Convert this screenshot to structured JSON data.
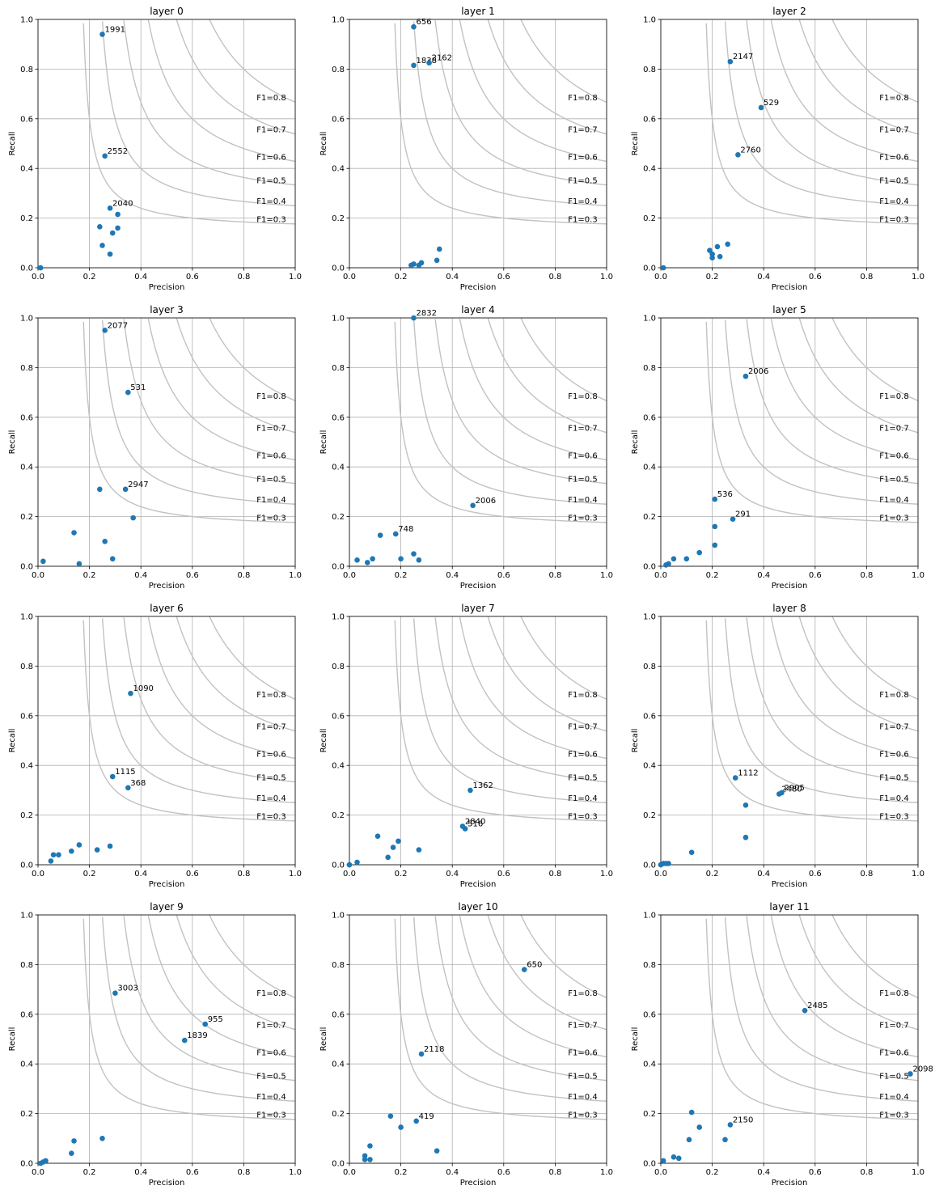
{
  "figure": {
    "xlabel": "Precision",
    "ylabel": "Recall",
    "xlim": [
      0,
      1
    ],
    "ylim": [
      0,
      1
    ],
    "ticks": [
      0,
      0.2,
      0.4,
      0.6,
      0.8,
      1.0
    ],
    "tick_labels": [
      "0.0",
      "0.2",
      "0.4",
      "0.6",
      "0.8",
      "1.0"
    ],
    "grid": true,
    "iso_f1": [
      0.3,
      0.4,
      0.5,
      0.6,
      0.7,
      0.8
    ],
    "iso_f1_labels": [
      "F1=0.3",
      "F1=0.4",
      "F1=0.5",
      "F1=0.6",
      "F1=0.7",
      "F1=0.8"
    ],
    "iso_curve_color": "#c2c2c2",
    "point_color": "#1f77b4",
    "grid_color": "#b0b0b0"
  },
  "chart_data": [
    {
      "type": "scatter",
      "title": "layer 0",
      "points": [
        {
          "x": 0.25,
          "y": 0.94,
          "label": "1991"
        },
        {
          "x": 0.26,
          "y": 0.45,
          "label": "2552"
        },
        {
          "x": 0.28,
          "y": 0.24,
          "label": "2040"
        },
        {
          "x": 0.31,
          "y": 0.215
        },
        {
          "x": 0.24,
          "y": 0.165
        },
        {
          "x": 0.31,
          "y": 0.16
        },
        {
          "x": 0.29,
          "y": 0.14
        },
        {
          "x": 0.25,
          "y": 0.09
        },
        {
          "x": 0.28,
          "y": 0.055
        },
        {
          "x": 0.01,
          "y": 0.0
        }
      ]
    },
    {
      "type": "scatter",
      "title": "layer 1",
      "points": [
        {
          "x": 0.25,
          "y": 0.97,
          "label": "656"
        },
        {
          "x": 0.25,
          "y": 0.815,
          "label": "1838"
        },
        {
          "x": 0.31,
          "y": 0.825,
          "label": "2162"
        },
        {
          "x": 0.35,
          "y": 0.075
        },
        {
          "x": 0.34,
          "y": 0.03
        },
        {
          "x": 0.28,
          "y": 0.02
        },
        {
          "x": 0.25,
          "y": 0.015
        },
        {
          "x": 0.24,
          "y": 0.01
        },
        {
          "x": 0.27,
          "y": 0.01
        }
      ]
    },
    {
      "type": "scatter",
      "title": "layer 2",
      "points": [
        {
          "x": 0.27,
          "y": 0.83,
          "label": "2147"
        },
        {
          "x": 0.39,
          "y": 0.645,
          "label": "529"
        },
        {
          "x": 0.3,
          "y": 0.455,
          "label": "2760"
        },
        {
          "x": 0.26,
          "y": 0.095
        },
        {
          "x": 0.22,
          "y": 0.085
        },
        {
          "x": 0.19,
          "y": 0.07
        },
        {
          "x": 0.2,
          "y": 0.055
        },
        {
          "x": 0.23,
          "y": 0.045
        },
        {
          "x": 0.2,
          "y": 0.04
        },
        {
          "x": 0.01,
          "y": 0.0
        }
      ]
    },
    {
      "type": "scatter",
      "title": "layer 3",
      "points": [
        {
          "x": 0.26,
          "y": 0.95,
          "label": "2077"
        },
        {
          "x": 0.35,
          "y": 0.7,
          "label": "531"
        },
        {
          "x": 0.34,
          "y": 0.31,
          "label": "2947"
        },
        {
          "x": 0.24,
          "y": 0.31
        },
        {
          "x": 0.37,
          "y": 0.195
        },
        {
          "x": 0.14,
          "y": 0.135
        },
        {
          "x": 0.26,
          "y": 0.1
        },
        {
          "x": 0.29,
          "y": 0.03
        },
        {
          "x": 0.02,
          "y": 0.02
        },
        {
          "x": 0.16,
          "y": 0.01
        }
      ]
    },
    {
      "type": "scatter",
      "title": "layer 4",
      "points": [
        {
          "x": 0.25,
          "y": 1.0,
          "label": "2832"
        },
        {
          "x": 0.48,
          "y": 0.245,
          "label": "2006"
        },
        {
          "x": 0.18,
          "y": 0.13,
          "label": "748"
        },
        {
          "x": 0.12,
          "y": 0.125
        },
        {
          "x": 0.25,
          "y": 0.05
        },
        {
          "x": 0.09,
          "y": 0.03
        },
        {
          "x": 0.2,
          "y": 0.03
        },
        {
          "x": 0.03,
          "y": 0.025
        },
        {
          "x": 0.27,
          "y": 0.025
        },
        {
          "x": 0.07,
          "y": 0.015
        }
      ]
    },
    {
      "type": "scatter",
      "title": "layer 5",
      "points": [
        {
          "x": 0.33,
          "y": 0.765,
          "label": "2006"
        },
        {
          "x": 0.21,
          "y": 0.27,
          "label": "536"
        },
        {
          "x": 0.28,
          "y": 0.19,
          "label": "291"
        },
        {
          "x": 0.21,
          "y": 0.16
        },
        {
          "x": 0.21,
          "y": 0.085
        },
        {
          "x": 0.15,
          "y": 0.055
        },
        {
          "x": 0.05,
          "y": 0.03
        },
        {
          "x": 0.1,
          "y": 0.03
        },
        {
          "x": 0.03,
          "y": 0.01
        },
        {
          "x": 0.02,
          "y": 0.005
        }
      ]
    },
    {
      "type": "scatter",
      "title": "layer 6",
      "points": [
        {
          "x": 0.36,
          "y": 0.69,
          "label": "1090"
        },
        {
          "x": 0.29,
          "y": 0.355,
          "label": "1115"
        },
        {
          "x": 0.35,
          "y": 0.31,
          "label": "368"
        },
        {
          "x": 0.16,
          "y": 0.08
        },
        {
          "x": 0.28,
          "y": 0.075
        },
        {
          "x": 0.23,
          "y": 0.06
        },
        {
          "x": 0.13,
          "y": 0.055
        },
        {
          "x": 0.06,
          "y": 0.04
        },
        {
          "x": 0.08,
          "y": 0.04
        },
        {
          "x": 0.05,
          "y": 0.015
        }
      ]
    },
    {
      "type": "scatter",
      "title": "layer 7",
      "points": [
        {
          "x": 0.47,
          "y": 0.3,
          "label": "1362"
        },
        {
          "x": 0.44,
          "y": 0.155,
          "label": "2840"
        },
        {
          "x": 0.45,
          "y": 0.145,
          "label": "516"
        },
        {
          "x": 0.11,
          "y": 0.115
        },
        {
          "x": 0.19,
          "y": 0.095
        },
        {
          "x": 0.17,
          "y": 0.07
        },
        {
          "x": 0.27,
          "y": 0.06
        },
        {
          "x": 0.15,
          "y": 0.03
        },
        {
          "x": 0.03,
          "y": 0.01
        },
        {
          "x": 0.0,
          "y": 0.0
        }
      ]
    },
    {
      "type": "scatter",
      "title": "layer 8",
      "points": [
        {
          "x": 0.29,
          "y": 0.35,
          "label": "1112"
        },
        {
          "x": 0.46,
          "y": 0.285,
          "label": "2480"
        },
        {
          "x": 0.47,
          "y": 0.29,
          "label": "2905"
        },
        {
          "x": 0.33,
          "y": 0.24
        },
        {
          "x": 0.33,
          "y": 0.11
        },
        {
          "x": 0.12,
          "y": 0.05
        },
        {
          "x": 0.01,
          "y": 0.005
        },
        {
          "x": 0.02,
          "y": 0.005
        },
        {
          "x": 0.03,
          "y": 0.005
        },
        {
          "x": 0.0,
          "y": 0.0
        }
      ]
    },
    {
      "type": "scatter",
      "title": "layer 9",
      "points": [
        {
          "x": 0.3,
          "y": 0.685,
          "label": "3003"
        },
        {
          "x": 0.65,
          "y": 0.56,
          "label": "955"
        },
        {
          "x": 0.57,
          "y": 0.495,
          "label": "1839"
        },
        {
          "x": 0.25,
          "y": 0.1
        },
        {
          "x": 0.14,
          "y": 0.09
        },
        {
          "x": 0.13,
          "y": 0.04
        },
        {
          "x": 0.03,
          "y": 0.01
        },
        {
          "x": 0.02,
          "y": 0.005
        },
        {
          "x": 0.01,
          "y": 0.0
        }
      ]
    },
    {
      "type": "scatter",
      "title": "layer 10",
      "points": [
        {
          "x": 0.68,
          "y": 0.78,
          "label": "650"
        },
        {
          "x": 0.28,
          "y": 0.44,
          "label": "2118"
        },
        {
          "x": 0.26,
          "y": 0.17,
          "label": "419"
        },
        {
          "x": 0.16,
          "y": 0.19
        },
        {
          "x": 0.2,
          "y": 0.145
        },
        {
          "x": 0.08,
          "y": 0.07
        },
        {
          "x": 0.34,
          "y": 0.05
        },
        {
          "x": 0.06,
          "y": 0.03
        },
        {
          "x": 0.06,
          "y": 0.015
        },
        {
          "x": 0.08,
          "y": 0.015
        }
      ]
    },
    {
      "type": "scatter",
      "title": "layer 11",
      "points": [
        {
          "x": 0.56,
          "y": 0.615,
          "label": "2485"
        },
        {
          "x": 0.97,
          "y": 0.36,
          "label": "2098"
        },
        {
          "x": 0.27,
          "y": 0.155,
          "label": "2150"
        },
        {
          "x": 0.12,
          "y": 0.205
        },
        {
          "x": 0.15,
          "y": 0.145
        },
        {
          "x": 0.11,
          "y": 0.095
        },
        {
          "x": 0.25,
          "y": 0.095
        },
        {
          "x": 0.05,
          "y": 0.025
        },
        {
          "x": 0.07,
          "y": 0.02
        },
        {
          "x": 0.01,
          "y": 0.01
        }
      ]
    }
  ]
}
